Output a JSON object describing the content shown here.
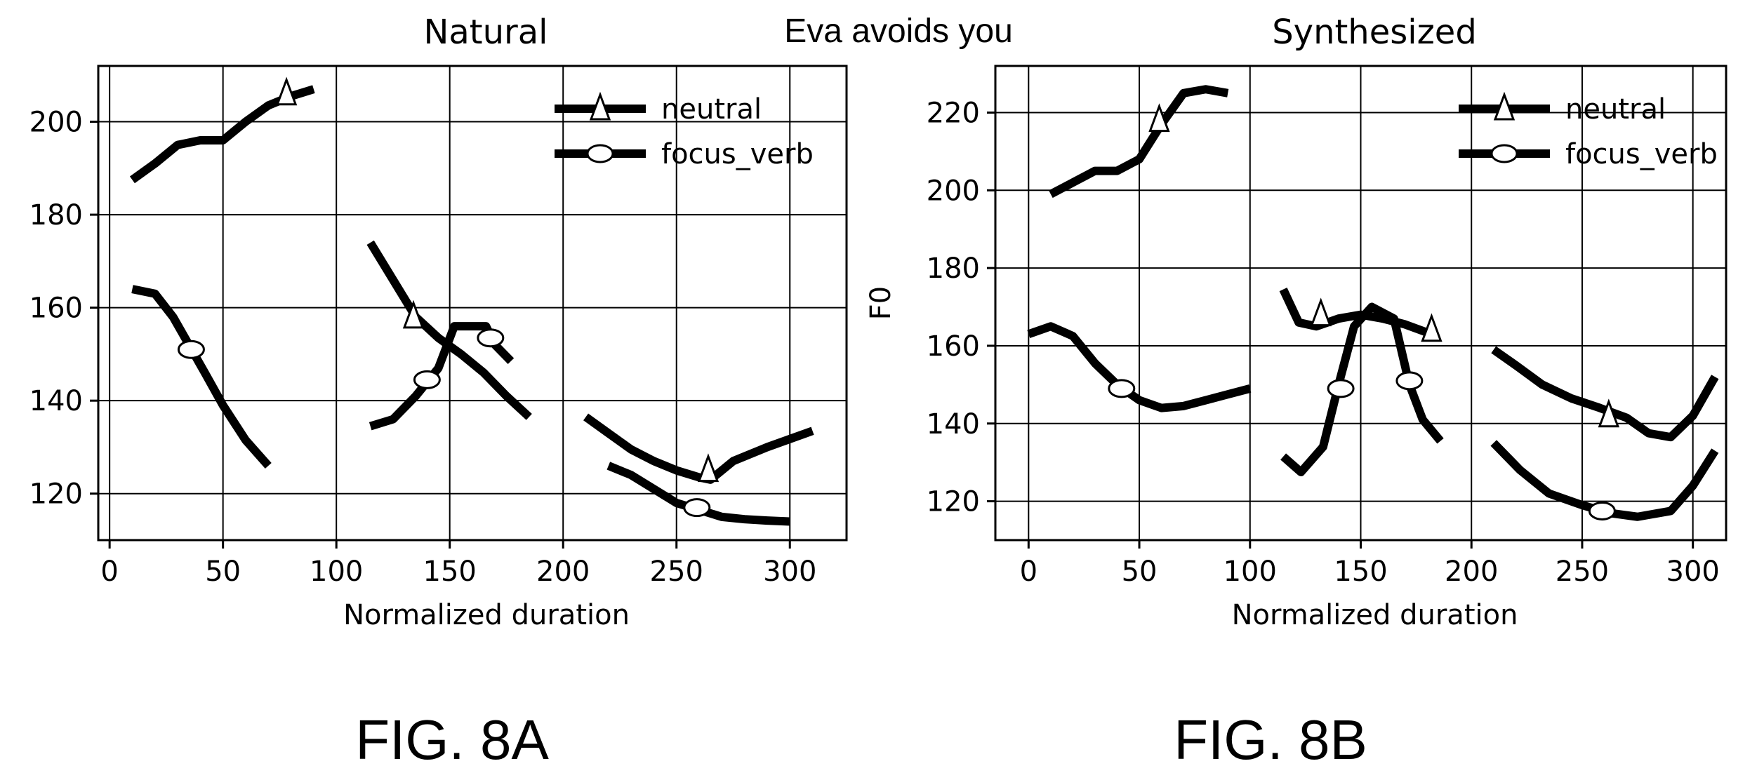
{
  "suptitle": "Eva avoids you",
  "chart_data": [
    {
      "type": "line",
      "title": "Natural",
      "xlabel": "Normalized duration",
      "ylabel": "",
      "figure_label": "FIG. 8A",
      "xlim": [
        -5,
        325
      ],
      "ylim": [
        110,
        212
      ],
      "xticks": [
        0,
        50,
        100,
        150,
        200,
        250,
        300
      ],
      "yticks": [
        120,
        140,
        160,
        180,
        200
      ],
      "grid": true,
      "legend": {
        "position": "top-right",
        "entries": [
          "neutral",
          "focus_verb"
        ]
      },
      "series": [
        {
          "name": "neutral",
          "marker": "triangle",
          "segments": [
            {
              "x": [
                10,
                20,
                30,
                40,
                50,
                60,
                70,
                80,
                90
              ],
              "y": [
                187.5,
                191,
                195,
                196,
                196,
                200,
                203.5,
                205.5,
                207
              ],
              "marker_at": [
                78,
                206
              ]
            },
            {
              "x": [
                115,
                125,
                135,
                145,
                155,
                165,
                175,
                185
              ],
              "y": [
                174,
                166,
                158,
                153.5,
                150,
                146,
                141,
                136.5
              ],
              "marker_at": [
                134,
                158
              ]
            },
            {
              "x": [
                210,
                220,
                230,
                240,
                250,
                260,
                265,
                275,
                290,
                310
              ],
              "y": [
                136.5,
                133,
                129.5,
                127,
                125,
                123.5,
                123,
                127,
                130,
                133.5
              ],
              "marker_at": [
                264,
                125
              ]
            }
          ]
        },
        {
          "name": "focus_verb",
          "marker": "circle",
          "segments": [
            {
              "x": [
                10,
                20,
                28,
                35,
                42,
                50,
                60,
                70
              ],
              "y": [
                164,
                163,
                158,
                152,
                146,
                139,
                131.5,
                126
              ],
              "marker_at": [
                36,
                151
              ]
            },
            {
              "x": [
                115,
                125,
                135,
                145,
                152,
                160,
                166,
                170,
                177
              ],
              "y": [
                134.5,
                136,
                141,
                147,
                156,
                156,
                156,
                152,
                148.5
              ],
              "marker_at": [
                140,
                144.5
              ]
            },
            {
              "x": [
                220,
                230,
                240,
                250,
                260,
                270,
                280,
                290,
                300
              ],
              "y": [
                126,
                124,
                121,
                118,
                116.5,
                115,
                114.5,
                114.2,
                114
              ],
              "marker_at": [
                259,
                117
              ]
            }
          ],
          "extra_markers": [
            [
              168,
              153.5
            ]
          ]
        }
      ]
    },
    {
      "type": "line",
      "title": "Synthesized",
      "xlabel": "Normalized duration",
      "ylabel": "F0",
      "figure_label": "FIG. 8B",
      "xlim": [
        -15,
        315
      ],
      "ylim": [
        110,
        232
      ],
      "xticks": [
        0,
        50,
        100,
        150,
        200,
        250,
        300
      ],
      "yticks": [
        120,
        140,
        160,
        180,
        200,
        220
      ],
      "grid": true,
      "legend": {
        "position": "top-right",
        "entries": [
          "neutral",
          "focus_verb"
        ]
      },
      "series": [
        {
          "name": "neutral",
          "marker": "triangle",
          "segments": [
            {
              "x": [
                10,
                20,
                30,
                40,
                50,
                60,
                70,
                80,
                90
              ],
              "y": [
                199,
                202,
                205,
                205,
                208,
                217,
                225,
                226,
                225
              ],
              "marker_at": [
                59,
                218
              ]
            },
            {
              "x": [
                115,
                122,
                130,
                140,
                150,
                160,
                170,
                182
              ],
              "y": [
                174.5,
                166,
                165,
                167,
                168,
                167,
                165.5,
                163
              ],
              "marker_at": [
                132,
                168
              ]
            },
            {
              "x": [
                210,
                220,
                232,
                245,
                258,
                270,
                280,
                290,
                300,
                310
              ],
              "y": [
                159,
                155,
                150,
                146.5,
                144,
                141.5,
                137.5,
                136.5,
                142,
                152
              ],
              "marker_at": [
                262,
                142
              ]
            }
          ],
          "extra_markers": [
            [
              182,
              164
            ]
          ]
        },
        {
          "name": "focus_verb",
          "marker": "circle",
          "segments": [
            {
              "x": [
                0,
                10,
                20,
                30,
                40,
                50,
                60,
                70,
                80,
                90,
                100
              ],
              "y": [
                163,
                165,
                162.5,
                155.5,
                150,
                146,
                144,
                144.5,
                146,
                147.5,
                149
              ],
              "marker_at": [
                42,
                149
              ]
            },
            {
              "x": [
                115,
                123,
                133,
                140,
                147,
                155,
                165,
                172,
                178,
                186
              ],
              "y": [
                131.5,
                127.5,
                134,
                150,
                165,
                170,
                167,
                150,
                141,
                135.5
              ],
              "marker_at": [
                141,
                149
              ]
            },
            {
              "x": [
                210,
                222,
                235,
                250,
                262,
                275,
                290,
                300,
                310
              ],
              "y": [
                135,
                128,
                122,
                119,
                117,
                116,
                117.5,
                124,
                133
              ],
              "marker_at": [
                259,
                117.5
              ]
            }
          ],
          "extra_markers": [
            [
              172,
              151
            ]
          ]
        }
      ]
    }
  ]
}
